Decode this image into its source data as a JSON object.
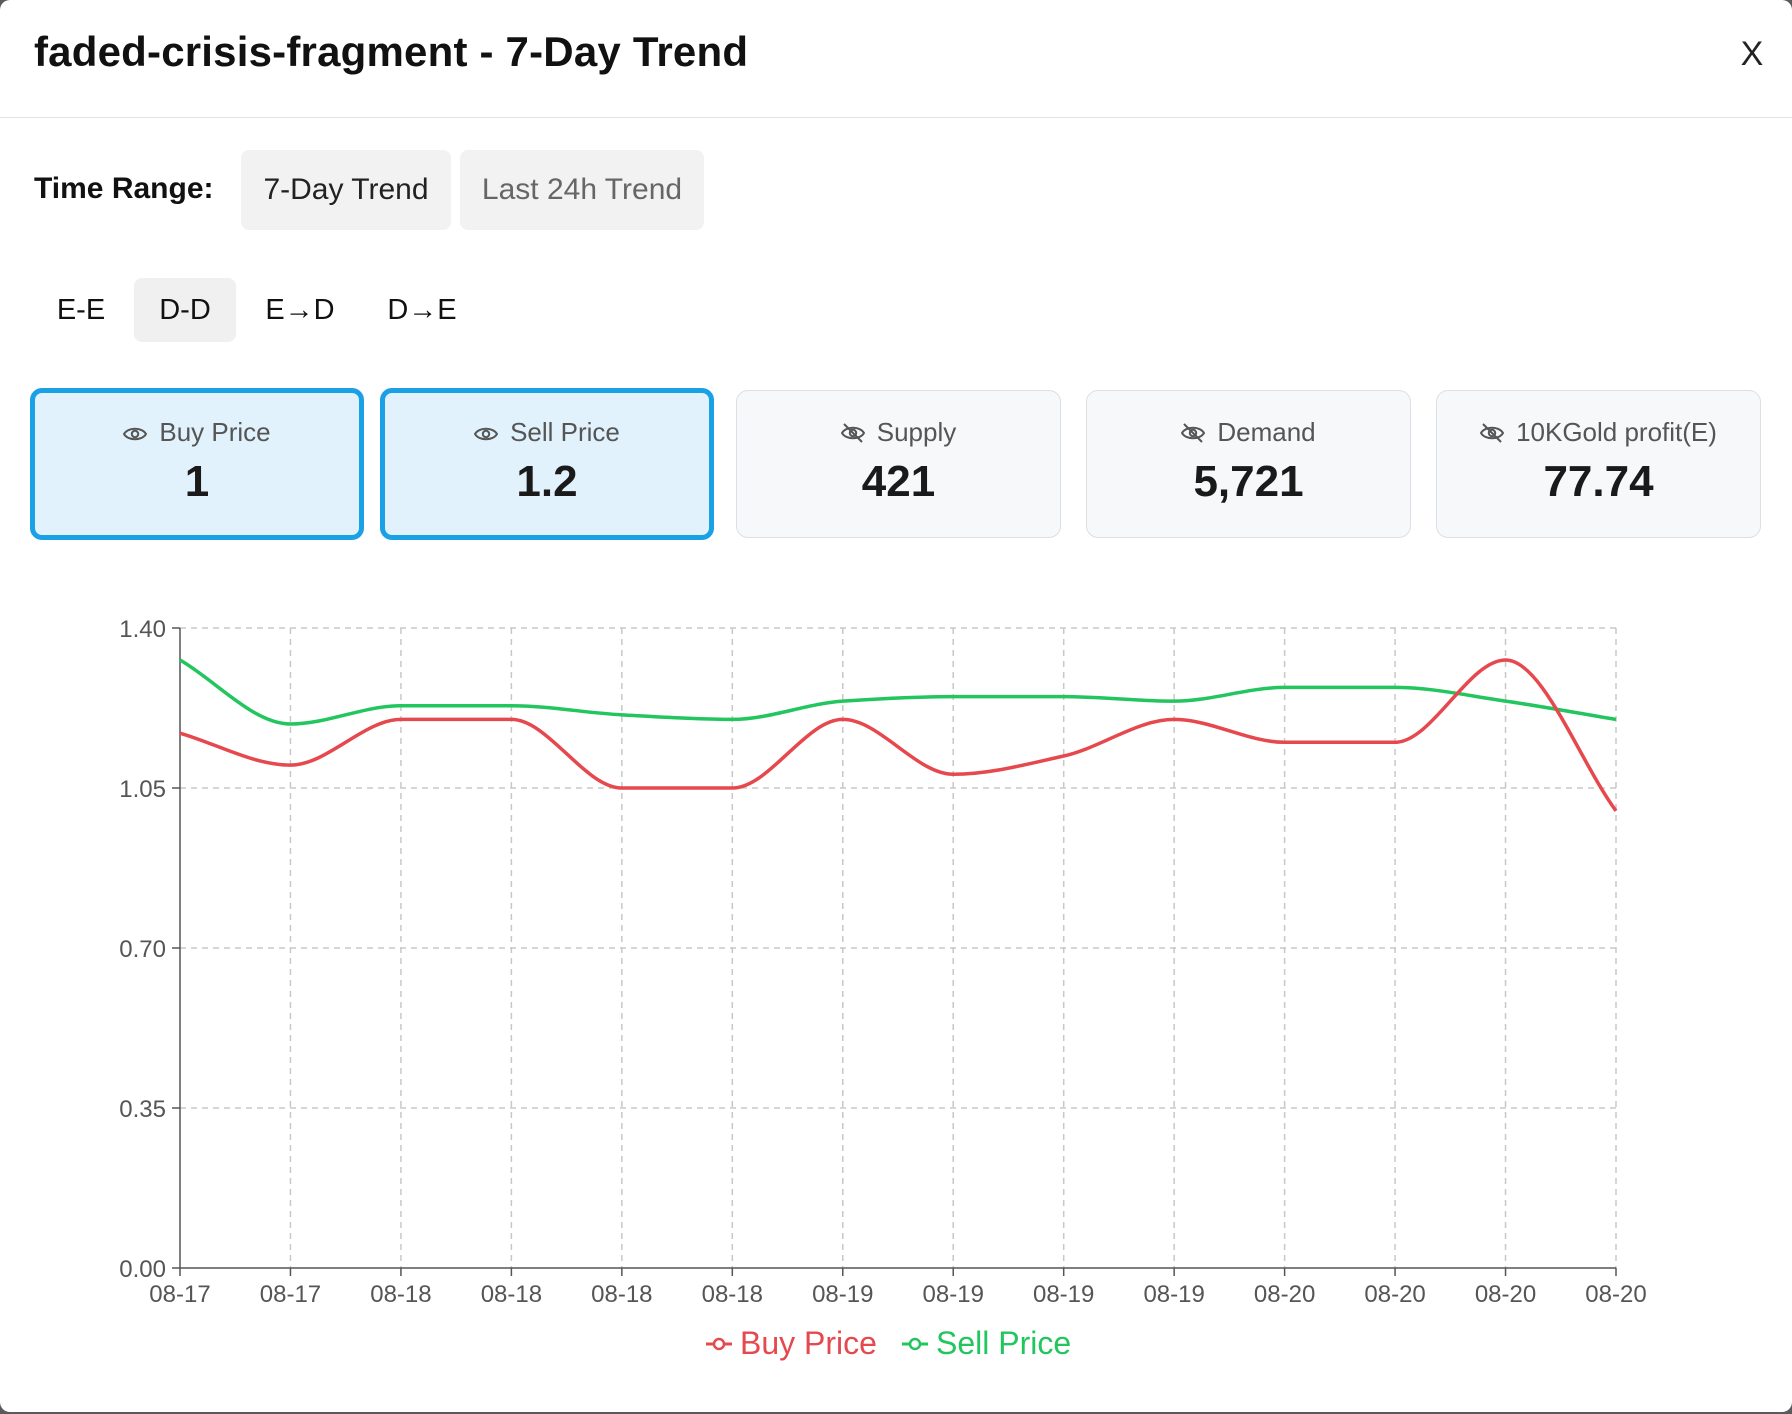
{
  "header": {
    "title": "faded-crisis-fragment - 7-Day Trend",
    "close_label": "X"
  },
  "time_range": {
    "label": "Time Range:",
    "options": [
      "7-Day Trend",
      "Last 24h Trend"
    ],
    "selected": "7-Day Trend"
  },
  "modes": {
    "options": [
      "E-E",
      "D-D",
      "E→D",
      "D→E"
    ],
    "selected": "D-D"
  },
  "cards": [
    {
      "label": "Buy Price",
      "value": "1",
      "icon": "eye-icon",
      "selected": true
    },
    {
      "label": "Sell Price",
      "value": "1.2",
      "icon": "eye-icon",
      "selected": true
    },
    {
      "label": "Supply",
      "value": "421",
      "icon": "eye-off-icon",
      "selected": false
    },
    {
      "label": "Demand",
      "value": "5,721",
      "icon": "eye-off-icon",
      "selected": false
    },
    {
      "label": "10KGold profit(E)",
      "value": "77.74",
      "icon": "eye-off-icon",
      "selected": false
    }
  ],
  "colors": {
    "buy": "#e5484d",
    "sell": "#22c55e",
    "selected_border": "#1aa0e4",
    "selected_bg": "#e1f2fc"
  },
  "chart_data": {
    "type": "line",
    "categories": [
      "08-17",
      "08-17",
      "08-18",
      "08-18",
      "08-18",
      "08-18",
      "08-19",
      "08-19",
      "08-19",
      "08-19",
      "08-20",
      "08-20",
      "08-20",
      "08-20"
    ],
    "series": [
      {
        "name": "Buy Price",
        "color": "#e5484d",
        "values": [
          1.17,
          1.1,
          1.2,
          1.2,
          1.05,
          1.05,
          1.2,
          1.08,
          1.12,
          1.2,
          1.15,
          1.15,
          1.33,
          1.0
        ]
      },
      {
        "name": "Sell Price",
        "color": "#22c55e",
        "values": [
          1.33,
          1.19,
          1.23,
          1.23,
          1.21,
          1.2,
          1.24,
          1.25,
          1.25,
          1.24,
          1.27,
          1.27,
          1.24,
          1.2
        ]
      }
    ],
    "y_ticks": [
      "0.00",
      "0.35",
      "0.70",
      "1.05",
      "1.40"
    ],
    "ylim": [
      0,
      1.4
    ],
    "grid": true,
    "legend_position": "bottom"
  }
}
